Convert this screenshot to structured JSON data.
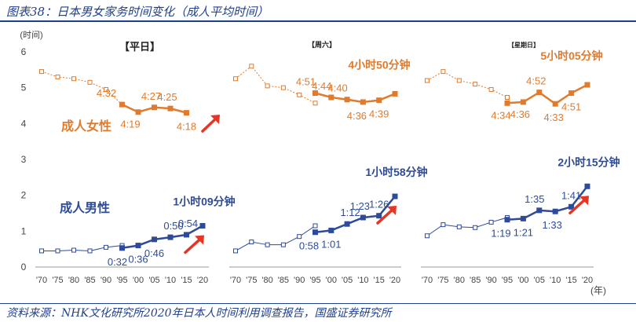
{
  "title": "图表38：日本男女家务时间变化（成人平均时间）",
  "source": "资料来源：NHK文化研究所2020年日本人时间利用调查报告，国盛证券研究所",
  "colors": {
    "female": "#e07b2d",
    "male": "#2e4b99",
    "axis": "#999999",
    "arrow": "#e53525",
    "text": "#555555"
  },
  "chart_data": {
    "type": "line",
    "ylabel": "(时间)",
    "xunit": "(年)",
    "ylim": [
      0,
      6
    ],
    "yticks": [
      0,
      1,
      2,
      3,
      4,
      5,
      6
    ],
    "panels": [
      {
        "title": "【平日】",
        "xticks": [
          "'70",
          "'75",
          "'80",
          "'85",
          "'90",
          "'95",
          "'00",
          "'05",
          "'10",
          "'15",
          "'20"
        ],
        "female": {
          "name": "成人女性",
          "old_x": [
            "'70",
            "'75",
            "'80",
            "'85",
            "'90",
            "'95"
          ],
          "old_y": [
            5.45,
            5.3,
            5.25,
            5.15,
            4.95,
            4.53
          ],
          "new_x": [
            "'95",
            "'00",
            "'05",
            "'10",
            "'15"
          ],
          "new_y": [
            4.53,
            4.32,
            4.45,
            4.42,
            4.3
          ],
          "labels": [
            "4:32",
            "4:19",
            "4:27",
            "4:25",
            "4:18"
          ]
        },
        "male": {
          "name": "成人男性",
          "old_x": [
            "'70",
            "'75",
            "'80",
            "'85",
            "'90",
            "'95"
          ],
          "old_y": [
            0.45,
            0.45,
            0.47,
            0.45,
            0.55,
            0.6
          ],
          "new_x": [
            "'95",
            "'00",
            "'05",
            "'10",
            "'15",
            "'20"
          ],
          "new_y": [
            0.53,
            0.6,
            0.77,
            0.83,
            0.9,
            1.15
          ],
          "labels": [
            "0:32",
            "0:36",
            "0:46",
            "0:50",
            "0:54"
          ]
        },
        "callout": "1小时09分钟"
      },
      {
        "title": "【周六】",
        "xticks": [
          "'70",
          "'75",
          "'80",
          "'85",
          "'90",
          "'95",
          "'00",
          "'05",
          "'10",
          "'15",
          "'20"
        ],
        "female": {
          "old_x": [
            "'70",
            "'75",
            "'80",
            "'85",
            "'90",
            "'95"
          ],
          "old_y": [
            5.25,
            5.6,
            5.05,
            5.0,
            4.8,
            4.57
          ],
          "new_x": [
            "'95",
            "'00",
            "'05",
            "'10",
            "'15",
            "'20"
          ],
          "new_y": [
            4.85,
            4.73,
            4.67,
            4.6,
            4.65,
            4.83
          ],
          "labels": [
            "4:51",
            "4:44",
            "4:40",
            "4:36",
            "4:39"
          ]
        },
        "male": {
          "old_x": [
            "'70",
            "'75",
            "'80",
            "'85",
            "'90",
            "'95"
          ],
          "old_y": [
            0.45,
            0.7,
            0.62,
            0.62,
            0.85,
            1.15
          ],
          "new_x": [
            "'95",
            "'00",
            "'05",
            "'10",
            "'15",
            "'20"
          ],
          "new_y": [
            0.97,
            1.02,
            1.2,
            1.38,
            1.43,
            1.97
          ],
          "labels": [
            "0:58",
            "1:01",
            "1:12",
            "1:23",
            "1:26"
          ]
        },
        "female_callout": "4小时50分钟",
        "callout": "1小时58分钟"
      },
      {
        "title": "【星期日】",
        "xticks": [
          "'70",
          "'75",
          "'80",
          "'85",
          "'90",
          "'95",
          "'00",
          "'05",
          "'10",
          "'15",
          "'20"
        ],
        "female": {
          "old_x": [
            "'70",
            "'75",
            "'80",
            "'85",
            "'90",
            "'95"
          ],
          "old_y": [
            5.2,
            5.45,
            5.2,
            5.1,
            4.95,
            4.73
          ],
          "new_x": [
            "'95",
            "'00",
            "'05",
            "'10",
            "'15",
            "'20"
          ],
          "new_y": [
            4.57,
            4.6,
            4.87,
            4.55,
            4.85,
            5.08
          ],
          "labels": [
            "4:34",
            "4:36",
            "4:52",
            "4:33",
            "4:51"
          ]
        },
        "male": {
          "old_x": [
            "'70",
            "'75",
            "'80",
            "'85",
            "'90",
            "'95"
          ],
          "old_y": [
            0.87,
            1.18,
            1.12,
            1.1,
            1.25,
            1.38
          ],
          "new_x": [
            "'95",
            "'00",
            "'05",
            "'10",
            "'15",
            "'20"
          ],
          "new_y": [
            1.32,
            1.35,
            1.58,
            1.55,
            1.68,
            2.25
          ],
          "labels": [
            "1:19",
            "1:21",
            "1:35",
            "1:33",
            "1:41"
          ]
        },
        "female_callout": "5小时05分钟",
        "callout": "2小时15分钟"
      }
    ]
  }
}
